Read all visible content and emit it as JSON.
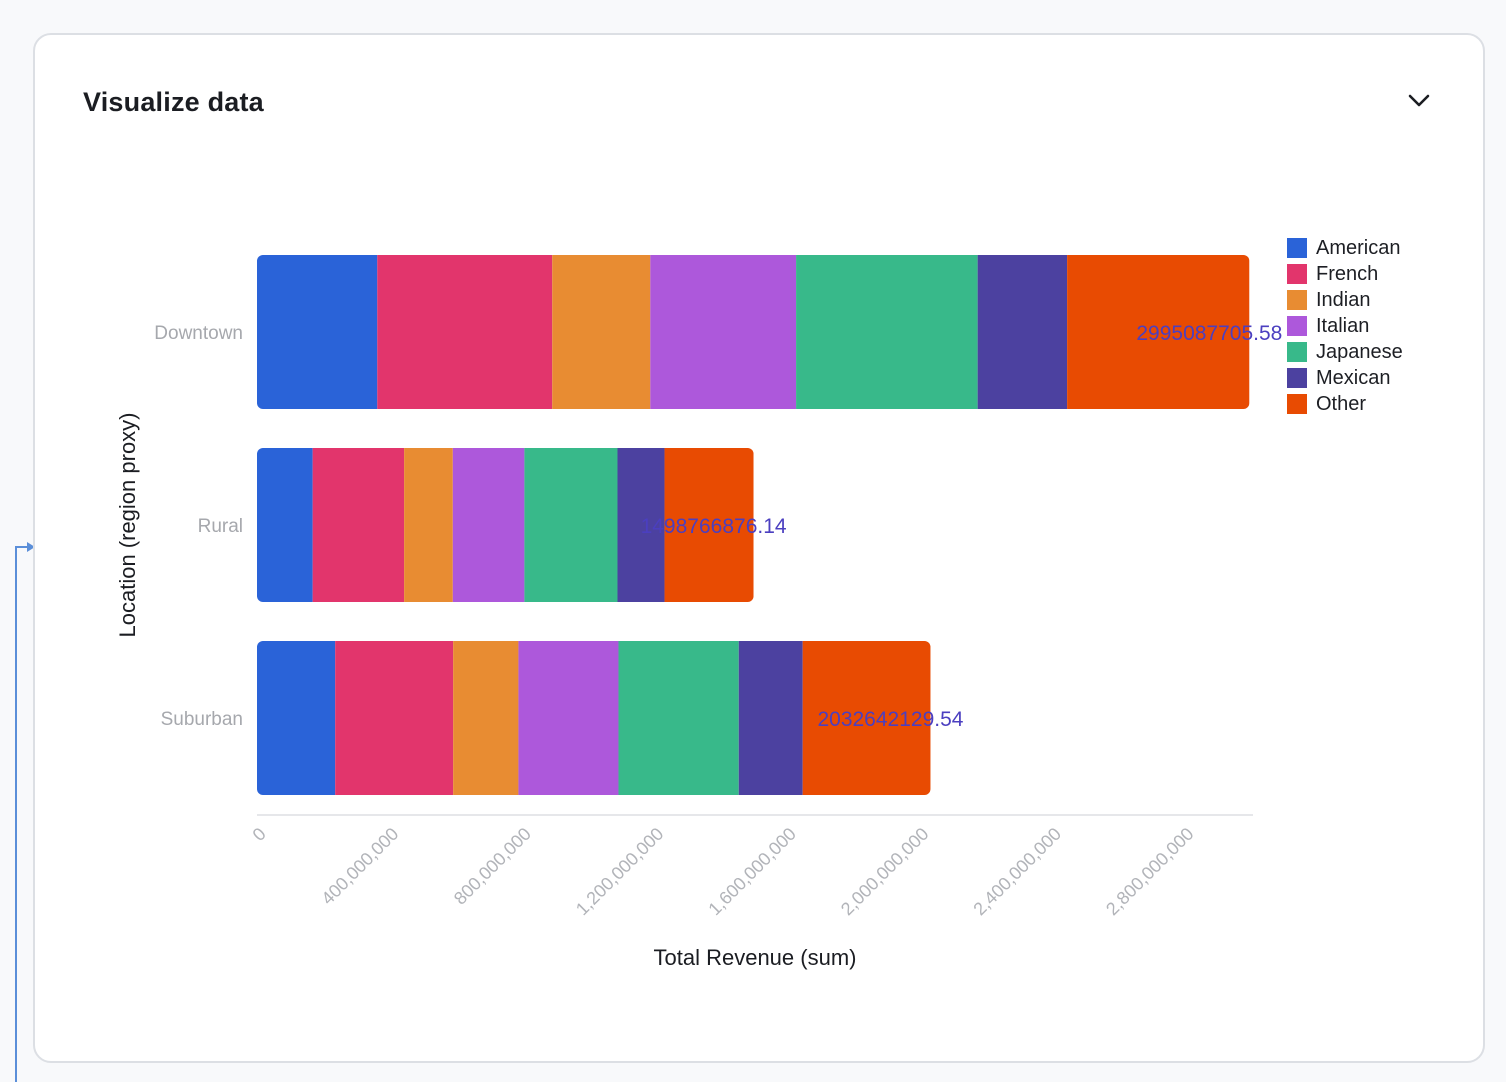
{
  "card": {
    "title": "Visualize data",
    "collapse_icon": "chevron-down-icon"
  },
  "chart_data": {
    "type": "bar",
    "orientation": "horizontal",
    "stacked": true,
    "categories": [
      "Downtown",
      "Rural",
      "Suburban"
    ],
    "totals_labels": [
      "2995087705.58",
      "1498766876.14",
      "2032642129.54"
    ],
    "series": [
      {
        "name": "American",
        "color": "#2a63d8",
        "values": [
          363000000,
          168000000,
          236000000
        ]
      },
      {
        "name": "French",
        "color": "#e2356c",
        "values": [
          528000000,
          276000000,
          356000000
        ]
      },
      {
        "name": "Indian",
        "color": "#e88c32",
        "values": [
          296000000,
          147000000,
          197000000
        ]
      },
      {
        "name": "Italian",
        "color": "#ad58db",
        "values": [
          440000000,
          216000000,
          302000000
        ]
      },
      {
        "name": "Japanese",
        "color": "#38b98a",
        "values": [
          548000000,
          281000000,
          363000000
        ]
      },
      {
        "name": "Mexican",
        "color": "#4c41a0",
        "values": [
          270000000,
          142000000,
          193000000
        ]
      },
      {
        "name": "Other",
        "color": "#e84b02",
        "values": [
          550087705.58,
          268766876.14,
          385642129.54
        ]
      }
    ],
    "x_ticks": [
      "0",
      "400,000,000",
      "800,000,000",
      "1,200,000,000",
      "1,600,000,000",
      "2,000,000,000",
      "2,400,000,000",
      "2,800,000,000"
    ],
    "x_tick_values": [
      0,
      400000000,
      800000000,
      1200000000,
      1600000000,
      2000000000,
      2400000000,
      2800000000
    ],
    "xlim": [
      0,
      3000000000
    ],
    "xlabel": "Total Revenue (sum)",
    "ylabel": "Location (region proxy)",
    "legend_position": "right",
    "grid": false,
    "total_label_color": "#4b3fc0"
  }
}
